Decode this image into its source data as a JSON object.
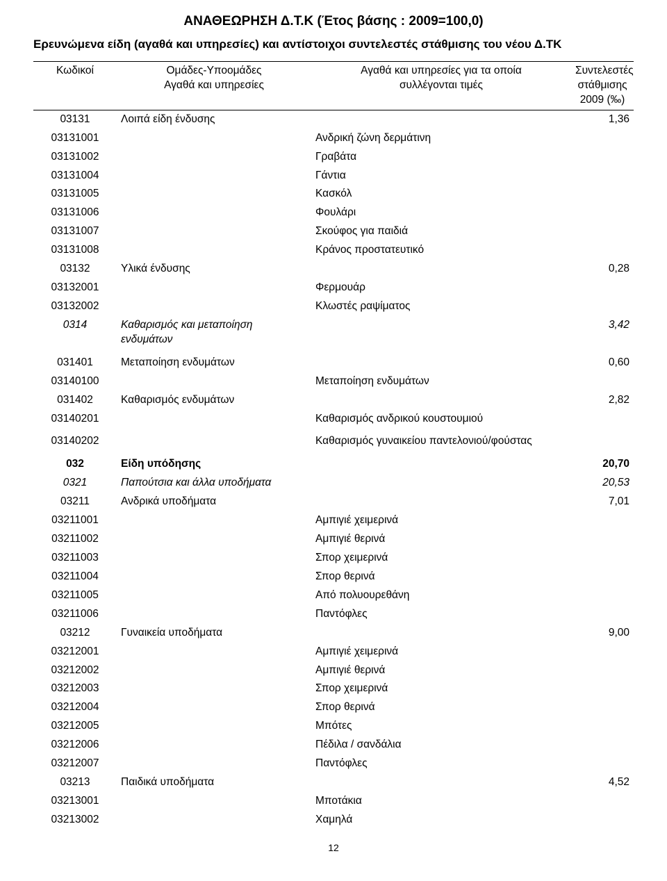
{
  "header": {
    "title": "ΑΝΑΘΕΩΡΗΣΗ Δ.Τ.Κ (Έτος βάσης : 2009=100,0)",
    "subtitle": "Ερευνώμενα είδη (αγαθά και υπηρεσίες) και αντίστοιχοι συντελεστές στάθμισης του νέου Δ.ΤΚ"
  },
  "columns": {
    "code": "Κωδικοί",
    "group_line1": "Ομάδες-Υποομάδες",
    "group_line2": "Αγαθά και υπηρεσίες",
    "item_line1": "Αγαθά και υπηρεσίες για τα οποία",
    "item_line2": "συλλέγονται τιμές",
    "value_line1": "Συντελεστές",
    "value_line2": "στάθμισης",
    "value_line3": "2009 (‰)"
  },
  "rows": [
    {
      "code": "03131",
      "group": "Λοιπά είδη ένδυσης",
      "item": "",
      "value": "1,36"
    },
    {
      "code": "03131001",
      "group": "",
      "item": "Ανδρική ζώνη δερμάτινη",
      "value": ""
    },
    {
      "code": "03131002",
      "group": "",
      "item": "Γραβάτα",
      "value": ""
    },
    {
      "code": "03131004",
      "group": "",
      "item": "Γάντια",
      "value": ""
    },
    {
      "code": "03131005",
      "group": "",
      "item": "Κασκόλ",
      "value": ""
    },
    {
      "code": "03131006",
      "group": "",
      "item": "Φουλάρι",
      "value": ""
    },
    {
      "code": "03131007",
      "group": "",
      "item": "Σκούφος για παιδιά",
      "value": ""
    },
    {
      "code": "03131008",
      "group": "",
      "item": "Κράνος προστατευτικό",
      "value": ""
    },
    {
      "code": "03132",
      "group": "Υλικά ένδυσης",
      "item": "",
      "value": "0,28"
    },
    {
      "code": "03132001",
      "group": "",
      "item": "Φερμουάρ",
      "value": ""
    },
    {
      "code": "03132002",
      "group": "",
      "item": "Κλωστές ραψίματος",
      "value": ""
    },
    {
      "code": "0314",
      "group": "Καθαρισμός και μεταποίηση ενδυμάτων",
      "item": "",
      "value": "3,42",
      "italic": true
    },
    {
      "spacer": true
    },
    {
      "code": "031401",
      "group": "Μεταποίηση ενδυμάτων",
      "item": "",
      "value": "0,60"
    },
    {
      "code": "03140100",
      "group": "",
      "item": "Μεταποίηση ενδυμάτων",
      "value": ""
    },
    {
      "code": "031402",
      "group": "Καθαρισμός ενδυμάτων",
      "item": "",
      "value": "2,82"
    },
    {
      "code": "03140201",
      "group": "",
      "item": "Καθαρισμός ανδρικού κουστουμιού",
      "value": ""
    },
    {
      "spacer": true
    },
    {
      "code": "03140202",
      "group": "",
      "item": "Καθαρισμός γυναικείου παντελονιού/φούστας",
      "value": ""
    },
    {
      "spacer": true
    },
    {
      "code": "032",
      "group": "Είδη υπόδησης",
      "item": "",
      "value": "20,70",
      "bold": true
    },
    {
      "code": "0321",
      "group": "Παπούτσια και άλλα υποδήματα",
      "item": "",
      "value": "20,53",
      "italic": true
    },
    {
      "code": "03211",
      "group": "Ανδρικά υποδήματα",
      "item": "",
      "value": "7,01"
    },
    {
      "code": "03211001",
      "group": "",
      "item": "Αμπιγιέ χειμερινά",
      "value": ""
    },
    {
      "code": "03211002",
      "group": "",
      "item": "Αμπιγιέ θερινά",
      "value": ""
    },
    {
      "code": "03211003",
      "group": "",
      "item": "Σπορ χειμερινά",
      "value": ""
    },
    {
      "code": "03211004",
      "group": "",
      "item": "Σπορ θερινά",
      "value": ""
    },
    {
      "code": "03211005",
      "group": "",
      "item": "Από πολυουρεθάνη",
      "value": ""
    },
    {
      "code": "03211006",
      "group": "",
      "item": "Παντόφλες",
      "value": ""
    },
    {
      "code": "03212",
      "group": "Γυναικεία υποδήματα",
      "item": "",
      "value": "9,00"
    },
    {
      "code": "03212001",
      "group": "",
      "item": "Αμπιγιέ χειμερινά",
      "value": ""
    },
    {
      "code": "03212002",
      "group": "",
      "item": "Αμπιγιέ θερινά",
      "value": ""
    },
    {
      "code": "03212003",
      "group": "",
      "item": "Σπορ χειμερινά",
      "value": ""
    },
    {
      "code": "03212004",
      "group": "",
      "item": "Σπορ θερινά",
      "value": ""
    },
    {
      "code": "03212005",
      "group": "",
      "item": "Μπότες",
      "value": ""
    },
    {
      "code": "03212006",
      "group": "",
      "item": "Πέδιλα / σανδάλια",
      "value": ""
    },
    {
      "code": "03212007",
      "group": "",
      "item": "Παντόφλες",
      "value": ""
    },
    {
      "code": "03213",
      "group": "Παιδικά υποδήματα",
      "item": "",
      "value": "4,52"
    },
    {
      "code": "03213001",
      "group": "",
      "item": "Μποτάκια",
      "value": ""
    },
    {
      "code": "03213002",
      "group": "",
      "item": "Χαμηλά",
      "value": ""
    }
  ],
  "page_number": "12"
}
